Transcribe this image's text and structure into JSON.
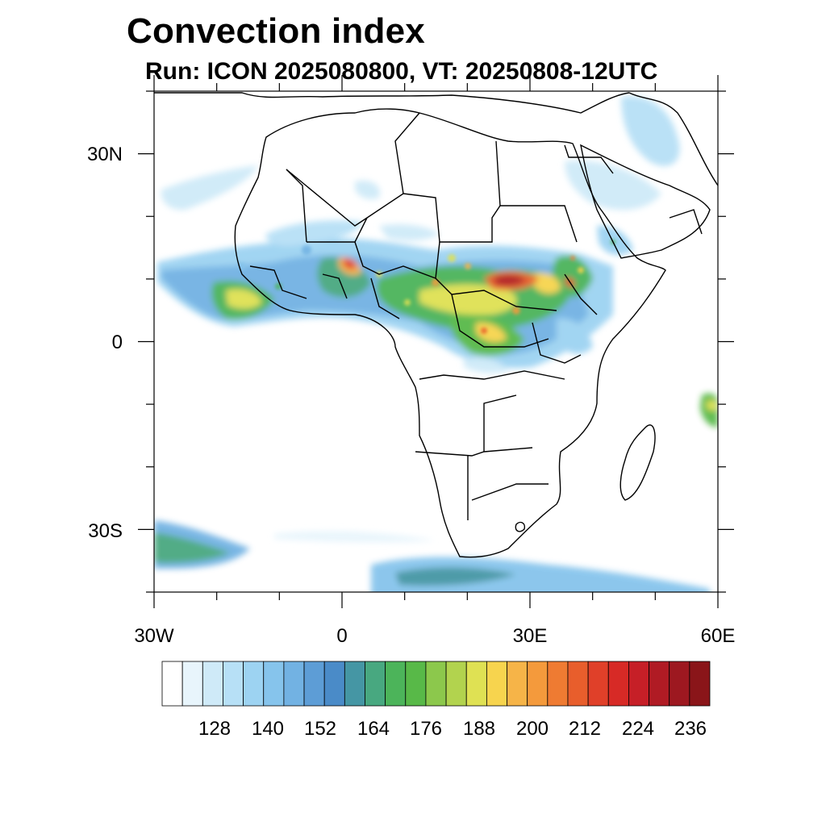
{
  "title": "Convection index",
  "subtitle": "Run: ICON 2025080800,  VT: 20250808-12UTC",
  "map": {
    "lon_range": [
      -30,
      60
    ],
    "lat_range": [
      -40,
      40
    ],
    "y_ticks": [
      {
        "label": "30N",
        "lat": 30
      },
      {
        "label": "0",
        "lat": 0
      },
      {
        "label": "30S",
        "lat": -30
      }
    ],
    "x_ticks": [
      {
        "label": "30W",
        "lon": -30
      },
      {
        "label": "0",
        "lon": 0
      },
      {
        "label": "30E",
        "lon": 30
      },
      {
        "label": "60E",
        "lon": 60
      }
    ],
    "minor_lon_step": 10,
    "minor_lat_step": 10
  },
  "colorbar": {
    "labels": [
      "128",
      "140",
      "152",
      "164",
      "176",
      "188",
      "200",
      "212",
      "224",
      "236"
    ],
    "colors": [
      "#ffffff",
      "#e8f5fc",
      "#cfeaf8",
      "#b7e0f6",
      "#9dd3f2",
      "#86c4ec",
      "#72b2e3",
      "#5d9dd6",
      "#4a8bc8",
      "#4596a4",
      "#48a880",
      "#4cb45a",
      "#58b948",
      "#8cc84c",
      "#b2d34e",
      "#dfe153",
      "#f7d44e",
      "#f6b448",
      "#f49a3c",
      "#ef7b32",
      "#e85e2c",
      "#e04029",
      "#d72a26",
      "#c61f27",
      "#b01b24",
      "#9d1820",
      "#8a1519"
    ]
  }
}
